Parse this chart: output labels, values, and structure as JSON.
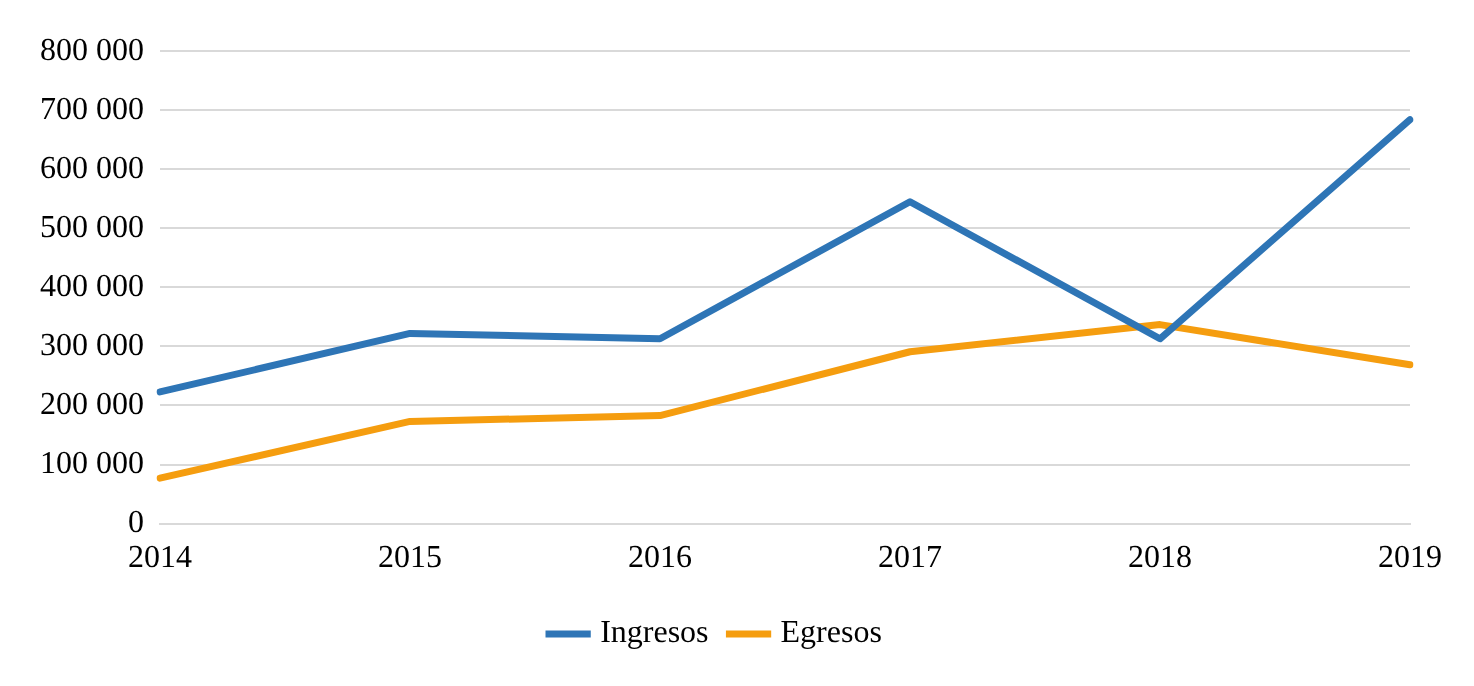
{
  "chart_data": {
    "type": "line",
    "categories": [
      "2014",
      "2015",
      "2016",
      "2017",
      "2018",
      "2019"
    ],
    "series": [
      {
        "name": "Ingresos",
        "color": "#2e75b6",
        "values": [
          223000,
          322000,
          313000,
          545000,
          313000,
          684000
        ]
      },
      {
        "name": "Egresos",
        "color": "#f59d0f",
        "values": [
          77000,
          173000,
          183000,
          291000,
          337000,
          269000
        ]
      }
    ],
    "ylim": [
      0,
      800000
    ],
    "yticks": [
      {
        "value": 0,
        "label": "0"
      },
      {
        "value": 100000,
        "label": "100 000"
      },
      {
        "value": 200000,
        "label": "200 000"
      },
      {
        "value": 300000,
        "label": "300 000"
      },
      {
        "value": 400000,
        "label": "400 000"
      },
      {
        "value": 500000,
        "label": "500 000"
      },
      {
        "value": 600000,
        "label": "600 000"
      },
      {
        "value": 700000,
        "label": "700 000"
      },
      {
        "value": 800000,
        "label": "800 000"
      }
    ],
    "grid": "y",
    "legend": "bottom",
    "marker": "none",
    "line_style": "solid"
  }
}
